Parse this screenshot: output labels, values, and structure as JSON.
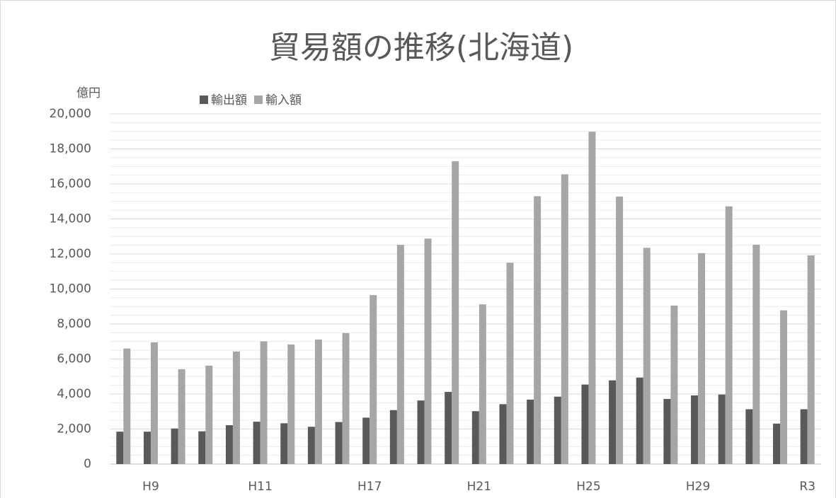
{
  "chart_data": {
    "type": "bar",
    "title": "貿易額の推移(北海道)",
    "y_label": "億円",
    "categories": [
      null,
      "H9",
      null,
      null,
      null,
      "H11",
      null,
      null,
      null,
      "H17",
      null,
      null,
      null,
      "H21",
      null,
      null,
      null,
      "H25",
      null,
      null,
      null,
      "H29",
      null,
      null,
      null,
      "R3"
    ],
    "series": [
      {
        "name": "輸出額",
        "color": "#595959",
        "values": [
          1850,
          1850,
          2030,
          1870,
          2220,
          2420,
          2330,
          2130,
          2400,
          2650,
          3080,
          3630,
          4120,
          3020,
          3420,
          3680,
          3850,
          4540,
          4780,
          4940,
          3720,
          3920,
          3970,
          3130,
          2310,
          3130
        ]
      },
      {
        "name": "輸入額",
        "color": "#a6a6a6",
        "values": [
          6600,
          6950,
          5420,
          5620,
          6430,
          7010,
          6830,
          7110,
          7480,
          9650,
          12520,
          12880,
          17300,
          9120,
          11500,
          15300,
          16550,
          18980,
          15280,
          12350,
          9050,
          12050,
          14720,
          12530,
          8780,
          11920
        ]
      }
    ],
    "ylim": [
      0,
      20000
    ],
    "yticks": [
      0,
      {
        "value": 2000,
        "label": "2,000"
      },
      {
        "value": 4000,
        "label": "4,000"
      },
      {
        "value": 6000,
        "label": "6,000"
      },
      {
        "value": 8000,
        "label": "8,000"
      },
      {
        "value": 10000,
        "label": "10,000"
      },
      {
        "value": 12000,
        "label": "12,000"
      },
      {
        "value": 14000,
        "label": "14,000"
      },
      {
        "value": 16000,
        "label": "16,000"
      },
      {
        "value": 18000,
        "label": "18,000"
      },
      {
        "value": 20000,
        "label": "20,000"
      }
    ],
    "grid": true,
    "legend": "top"
  }
}
